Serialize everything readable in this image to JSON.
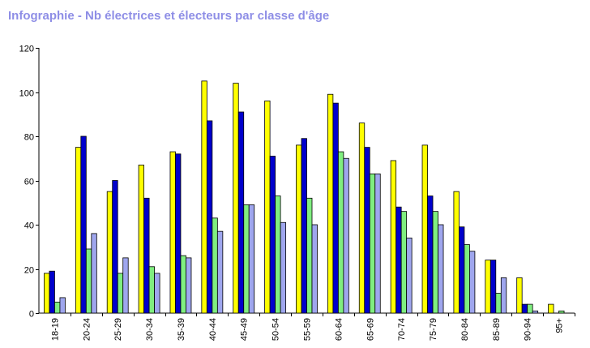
{
  "title": "Infographie - Nb électrices et électeurs par classe d'âge",
  "chart_data": {
    "type": "bar",
    "title": "Infographie - Nb électrices et électeurs par classe d'âge",
    "xlabel": "",
    "ylabel": "",
    "ylim": [
      0,
      120
    ],
    "yticks": [
      0,
      20,
      40,
      60,
      80,
      100,
      120
    ],
    "grid": false,
    "legend": "none",
    "categories": [
      "18-19",
      "20-24",
      "25-29",
      "30-34",
      "35-39",
      "40-44",
      "45-49",
      "50-54",
      "55-59",
      "60-64",
      "65-69",
      "70-74",
      "75-79",
      "80-84",
      "85-89",
      "90-94",
      "95+"
    ],
    "series": [
      {
        "color": "#ffff00",
        "values": [
          18,
          75,
          55,
          67,
          73,
          105,
          104,
          96,
          76,
          99,
          86,
          69,
          76,
          55,
          24,
          16,
          4
        ]
      },
      {
        "color": "#0000cc",
        "values": [
          19,
          80,
          60,
          52,
          72,
          87,
          91,
          71,
          79,
          95,
          75,
          48,
          53,
          39,
          24,
          4,
          0
        ]
      },
      {
        "color": "#80ee80",
        "values": [
          5,
          29,
          18,
          21,
          26,
          43,
          49,
          53,
          52,
          73,
          63,
          46,
          46,
          31,
          9,
          4,
          1
        ]
      },
      {
        "color": "#9fa6ee",
        "values": [
          7,
          36,
          25,
          18,
          25,
          37,
          49,
          41,
          40,
          70,
          63,
          34,
          40,
          28,
          16,
          1,
          0
        ]
      }
    ]
  }
}
